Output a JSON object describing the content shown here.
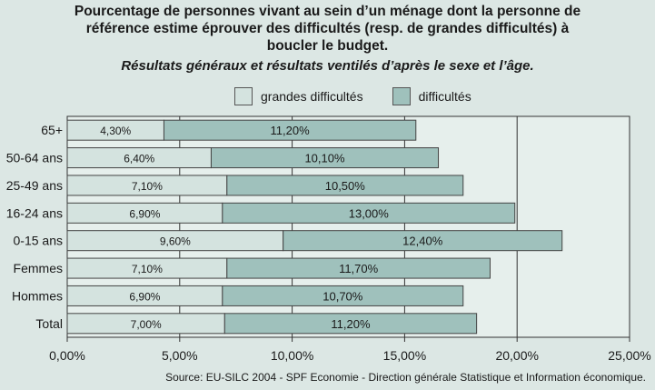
{
  "chart_data": {
    "type": "bar",
    "orientation": "horizontal",
    "stacked": true,
    "title_lines": [
      "Pourcentage de personnes vivant au sein d’un ménage dont la personne de",
      "référence estime éprouver des difficultés (resp. de grandes difficultés) à",
      "boucler le budget."
    ],
    "subtitle": "Résultats généraux et résultats ventilés d’après le sexe et l’âge.",
    "categories": [
      "65+",
      "50-64 ans",
      "25-49 ans",
      "16-24 ans",
      "0-15 ans",
      "Femmes",
      "Hommes",
      "Total"
    ],
    "series": [
      {
        "name": "grandes difficultés",
        "color": "#d4e3df",
        "values": [
          4.3,
          6.4,
          7.1,
          6.9,
          9.6,
          7.1,
          6.9,
          7.0
        ],
        "labels": [
          "4,30%",
          "6,40%",
          "7,10%",
          "6,90%",
          "9,60%",
          "7,10%",
          "6,90%",
          "7,00%"
        ]
      },
      {
        "name": "difficultés",
        "color": "#9fc1bc",
        "values": [
          11.2,
          10.1,
          10.5,
          13.0,
          12.4,
          11.7,
          10.7,
          11.2
        ],
        "labels": [
          "11,20%",
          "10,10%",
          "10,50%",
          "13,00%",
          "12,40%",
          "11,70%",
          "10,70%",
          "11,20%"
        ]
      }
    ],
    "xlim": [
      0,
      25
    ],
    "xticks": [
      0,
      5,
      10,
      15,
      20,
      25
    ],
    "xtick_labels": [
      "0,00%",
      "5,00%",
      "10,00%",
      "15,00%",
      "20,00%",
      "25,00%"
    ],
    "grid": true,
    "legend_position": "top-center",
    "plot_background": "#e6efec"
  },
  "source": "Source: EU-SILC 2004 - SPF Economie - Direction générale Statistique et Information économique."
}
